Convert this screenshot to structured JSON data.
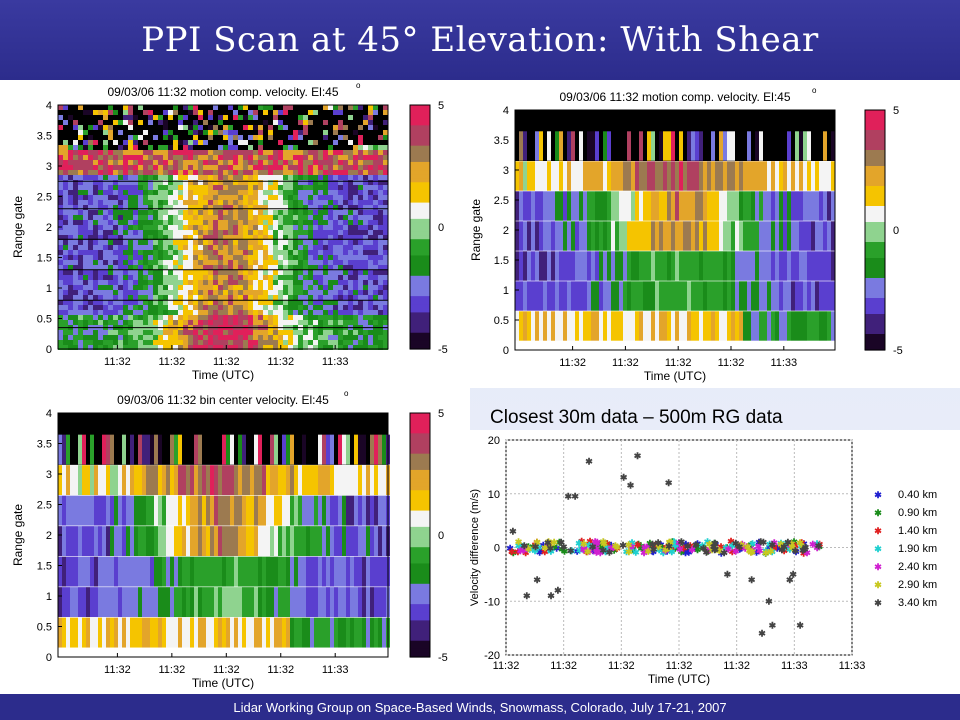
{
  "slide": {
    "title": "PPI Scan at 45° Elevation: With Shear",
    "footer": "Lidar Working Group on Space-Based Winds, Snowmass, Colorado, July 17-21, 2007",
    "annotation": "Closest 30m data – 500m RG data"
  },
  "palette": {
    "colormap": [
      "#1a0526",
      "#40207a",
      "#5a3fcf",
      "#7a7ae0",
      "#1a8c1a",
      "#2aa02a",
      "#8fd38f",
      "#f4f4f4",
      "#f5c400",
      "#e3a52a",
      "#9c7a50",
      "#b04060",
      "#e0205a"
    ],
    "series_colors": [
      "#1f1fd0",
      "#1a8c1a",
      "#e02020",
      "#20d0d0",
      "#d020d0",
      "#c8c820",
      "#444444"
    ]
  },
  "chart_data": [
    {
      "type": "heatmap",
      "title": "09/03/06 11:32  motion comp. velocity. El:45",
      "title_suffix": "o",
      "xlabel": "Time (UTC)",
      "ylabel": "Range gate",
      "x_ticks": [
        "11:32",
        "11:32",
        "11:32",
        "11:32",
        "11:33"
      ],
      "y_ticks": [
        "0",
        "0.5",
        "1",
        "1.5",
        "2",
        "2.5",
        "3",
        "3.5",
        "4"
      ],
      "ylim": [
        0,
        4
      ],
      "colorbar": {
        "ticks": [
          "5",
          "0",
          "-5"
        ],
        "range": [
          -5,
          5
        ]
      },
      "resolution": "fine",
      "horizontal_lines_at": [
        0.35,
        0.8,
        1.3,
        1.8,
        2.3,
        2.75
      ]
    },
    {
      "type": "heatmap",
      "title": "09/03/06 11:32  motion comp. velocity. El:45",
      "title_suffix": "o",
      "xlabel": "Time (UTC)",
      "ylabel": "Range gate",
      "x_ticks": [
        "11:32",
        "11:32",
        "11:32",
        "11:32",
        "11:33"
      ],
      "y_ticks": [
        "0",
        "0.5",
        "1",
        "1.5",
        "2",
        "2.5",
        "3",
        "3.5",
        "4"
      ],
      "ylim": [
        0,
        4
      ],
      "colorbar": {
        "ticks": [
          "5",
          "0",
          "-5"
        ],
        "range": [
          -5,
          5
        ]
      },
      "resolution": "banded",
      "band_centers": [
        0.4,
        0.9,
        1.4,
        1.9,
        2.4,
        2.9,
        3.4
      ]
    },
    {
      "type": "heatmap",
      "title": "09/03/06 11:32 bin center velocity. El:45",
      "title_suffix": "o",
      "xlabel": "Time (UTC)",
      "ylabel": "Range gate",
      "x_ticks": [
        "11:32",
        "11:32",
        "11:32",
        "11:32",
        "11:33"
      ],
      "y_ticks": [
        "0",
        "0.5",
        "1",
        "1.5",
        "2",
        "2.5",
        "3",
        "3.5",
        "4"
      ],
      "ylim": [
        0,
        4
      ],
      "colorbar": {
        "ticks": [
          "5",
          "0",
          "-5"
        ],
        "range": [
          -5,
          5
        ]
      },
      "resolution": "banded",
      "band_centers": [
        0.4,
        0.9,
        1.4,
        1.9,
        2.4,
        2.9,
        3.4
      ]
    },
    {
      "type": "scatter",
      "title": "",
      "xlabel": "Time (UTC)",
      "ylabel": "Velocity difference (m/s)",
      "x_ticks": [
        "11:32",
        "11:32",
        "11:32",
        "11:32",
        "11:32",
        "11:33",
        "11:33"
      ],
      "ylim": [
        -20,
        20
      ],
      "y_ticks": [
        20,
        10,
        0,
        -10,
        -20
      ],
      "grid": true,
      "legend_position": "right",
      "series": [
        {
          "name": "0.40 km"
        },
        {
          "name": "0.90 km"
        },
        {
          "name": "1.40 km"
        },
        {
          "name": "1.90 km"
        },
        {
          "name": "2.40 km"
        },
        {
          "name": "2.90 km"
        },
        {
          "name": "3.40 km",
          "outliers": [
            {
              "x": 0.02,
              "y": 3
            },
            {
              "x": 0.06,
              "y": -9
            },
            {
              "x": 0.09,
              "y": -6
            },
            {
              "x": 0.13,
              "y": -9
            },
            {
              "x": 0.15,
              "y": -8
            },
            {
              "x": 0.18,
              "y": 9.5
            },
            {
              "x": 0.2,
              "y": 9.5
            },
            {
              "x": 0.24,
              "y": 16
            },
            {
              "x": 0.34,
              "y": 13
            },
            {
              "x": 0.36,
              "y": 11.5
            },
            {
              "x": 0.38,
              "y": 17
            },
            {
              "x": 0.47,
              "y": 12
            },
            {
              "x": 0.64,
              "y": -5
            },
            {
              "x": 0.71,
              "y": -6
            },
            {
              "x": 0.74,
              "y": -16
            },
            {
              "x": 0.76,
              "y": -10
            },
            {
              "x": 0.77,
              "y": -14.5
            },
            {
              "x": 0.82,
              "y": -6
            },
            {
              "x": 0.83,
              "y": -5
            },
            {
              "x": 0.85,
              "y": -14.5
            }
          ]
        }
      ]
    }
  ]
}
